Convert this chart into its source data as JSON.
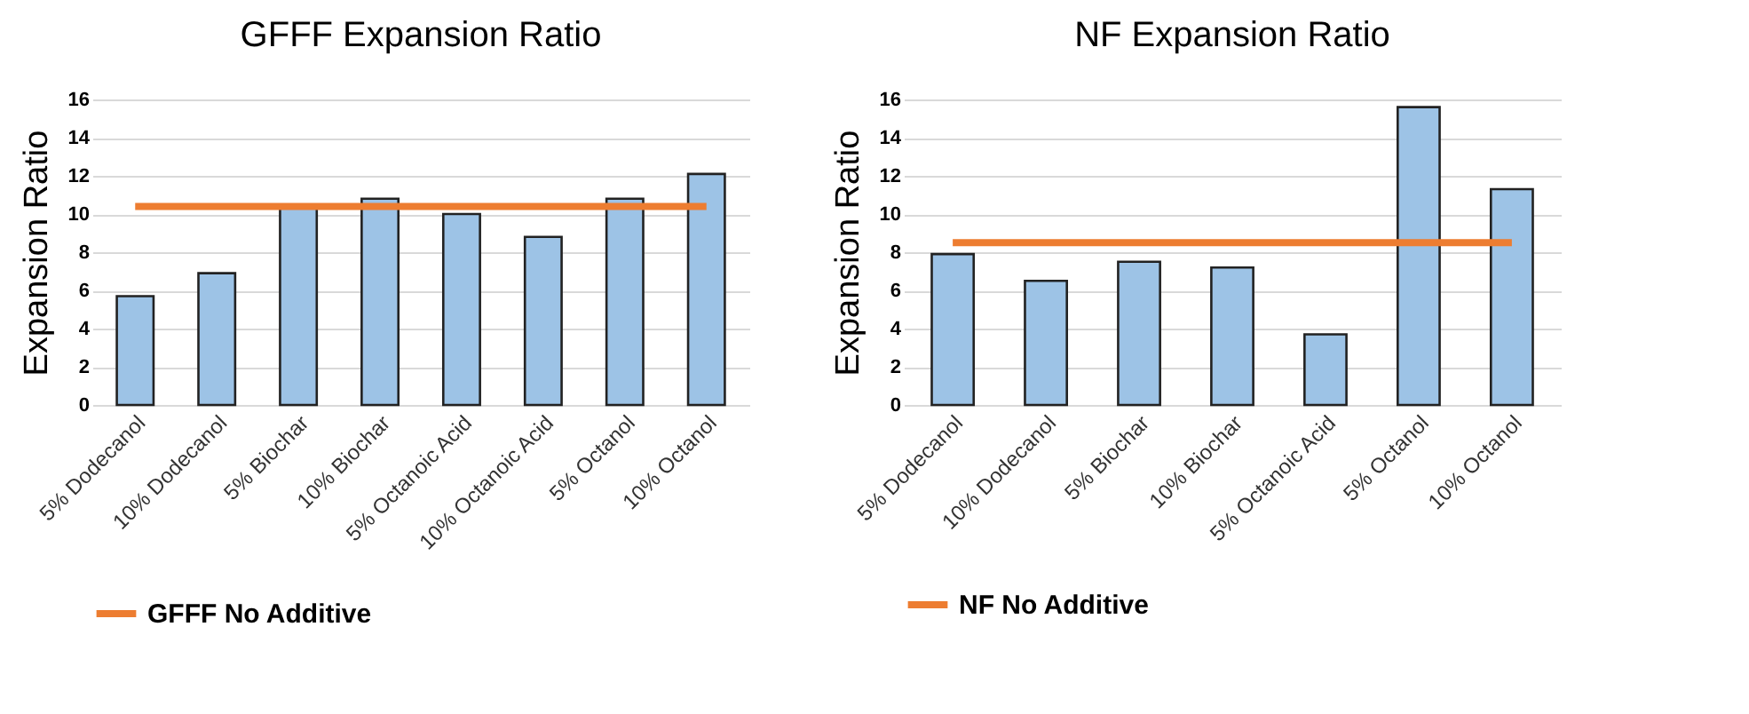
{
  "chart_data": [
    {
      "type": "bar",
      "title": "GFFF Expansion Ratio",
      "ylabel": "Expansion Ratio",
      "categories": [
        "5% Dodecanol",
        "10% Dodecanol",
        "5% Biochar",
        "10% Biochar",
        "5% Octanoic Acid",
        "10% Octanoic Acid",
        "5% Octanol",
        "10% Octanol"
      ],
      "ylim": [
        0,
        16
      ],
      "yticks": [
        0,
        2,
        4,
        6,
        8,
        10,
        12,
        14,
        16
      ],
      "grid": "y",
      "legend": "bottom",
      "series": [
        {
          "color": "#9dc3e6",
          "values": [
            5.7,
            6.9,
            10.4,
            10.8,
            10.0,
            8.8,
            10.8,
            12.1
          ]
        },
        {
          "type": "line",
          "name": "GFFF No Additive",
          "color": "#ed7d31",
          "values": [
            10.4,
            10.4,
            10.4,
            10.4,
            10.4,
            10.4,
            10.4,
            10.4
          ]
        }
      ]
    },
    {
      "type": "bar",
      "title": "NF Expansion Ratio",
      "ylabel": "Expansion Ratio",
      "categories": [
        "5% Dodecanol",
        "10% Dodecanol",
        "5% Biochar",
        "10% Biochar",
        "5% Octanoic Acid",
        "5% Octanol",
        "10% Octanol"
      ],
      "ylim": [
        0,
        16
      ],
      "yticks": [
        0,
        2,
        4,
        6,
        8,
        10,
        12,
        14,
        16
      ],
      "grid": "y",
      "legend": "bottom",
      "series": [
        {
          "color": "#9dc3e6",
          "values": [
            7.9,
            6.5,
            7.5,
            7.2,
            3.7,
            15.6,
            11.3
          ]
        },
        {
          "type": "line",
          "name": "NF No Additive",
          "color": "#ed7d31",
          "values": [
            8.5,
            8.5,
            8.5,
            8.5,
            8.5,
            8.5,
            8.5
          ]
        }
      ]
    }
  ]
}
